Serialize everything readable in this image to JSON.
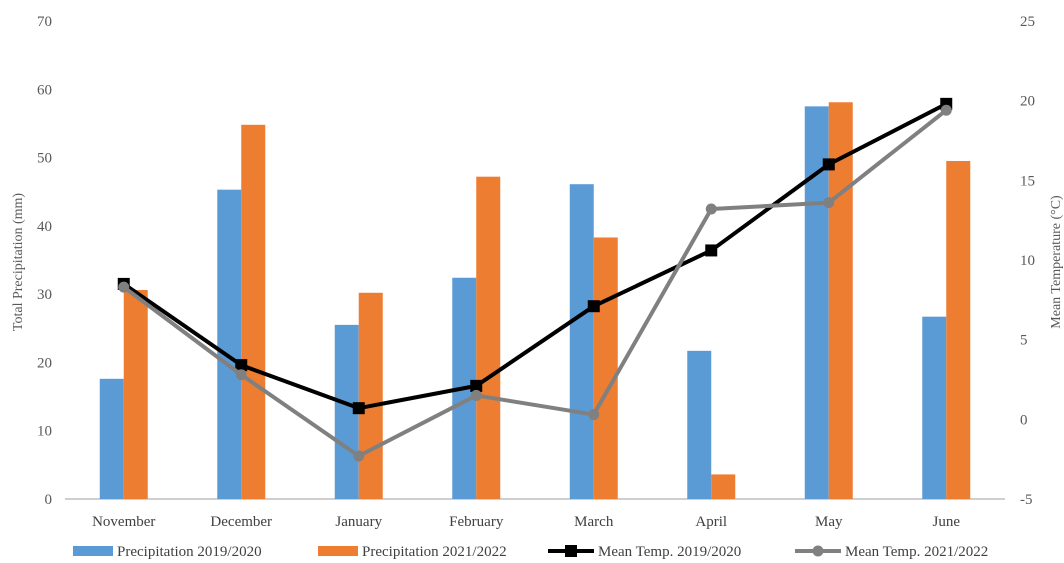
{
  "chart_data": {
    "type": "bar",
    "categories": [
      "November",
      "December",
      "January",
      "February",
      "March",
      "April",
      "May",
      "June"
    ],
    "ylabel": "Total Precipitation (mm)",
    "y2label": "Mean  Temperature (°C)",
    "ylim": [
      0,
      70
    ],
    "y_ticks": [
      "0",
      "10",
      "20",
      "30",
      "40",
      "50",
      "60",
      "70"
    ],
    "y2lim": [
      -5,
      25
    ],
    "y2_ticks": [
      "-5",
      "0",
      "5",
      "10",
      "15",
      "20",
      "25"
    ],
    "grid": false,
    "legend_position": "bottom",
    "bar_series": [
      {
        "name": "Precipitation 2019/2020",
        "color": "#5b9bd5",
        "values": [
          17.6,
          45.3,
          25.5,
          32.4,
          46.1,
          21.7,
          57.5,
          26.7
        ]
      },
      {
        "name": "Precipitation 2021/2022",
        "color": "#ed7d31",
        "values": [
          30.6,
          54.8,
          30.2,
          47.2,
          38.3,
          3.6,
          58.1,
          49.5
        ]
      }
    ],
    "line_series": [
      {
        "name": "Mean Temp. 2019/2020",
        "color": "#000000",
        "marker": "square",
        "axis": "right",
        "values": [
          8.5,
          3.4,
          0.7,
          2.1,
          7.1,
          10.6,
          16.0,
          19.8
        ]
      },
      {
        "name": "Mean Temp. 2021/2022",
        "color": "#808080",
        "marker": "circle",
        "axis": "right",
        "values": [
          8.3,
          2.8,
          -2.3,
          1.5,
          0.3,
          13.2,
          13.6,
          19.4
        ]
      }
    ]
  }
}
